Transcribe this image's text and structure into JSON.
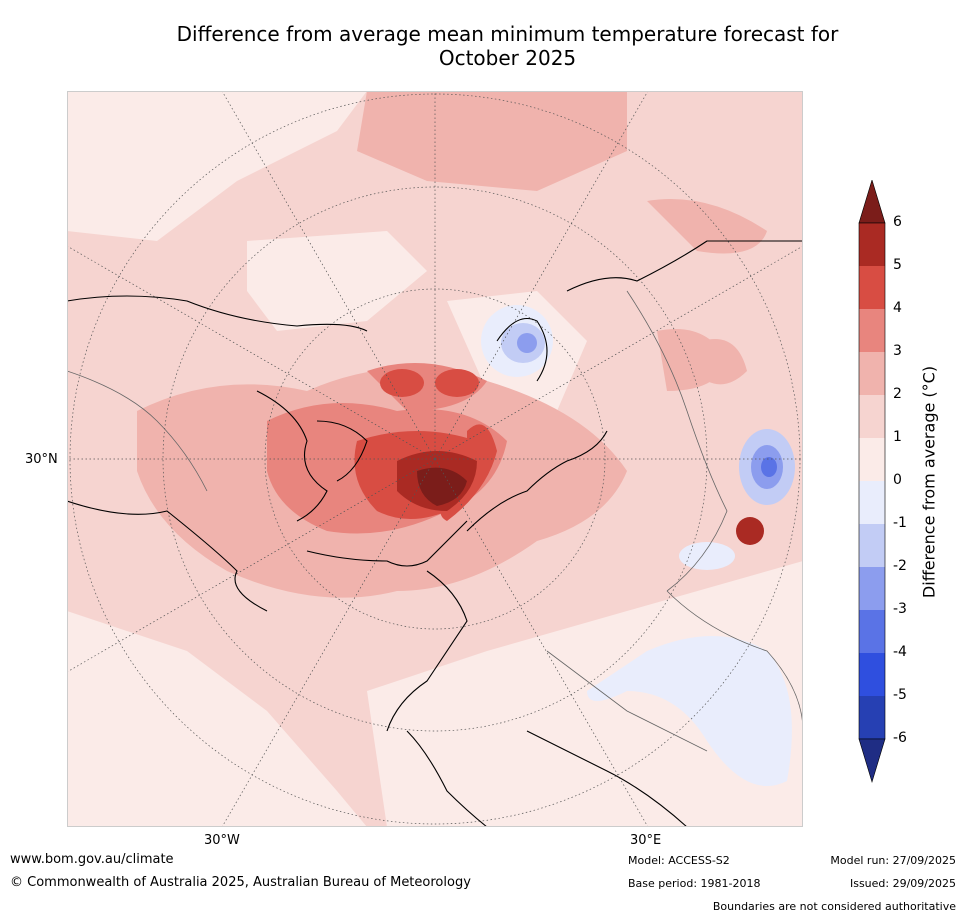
{
  "title_line1": "Difference from average mean minimum temperature forecast for",
  "title_line2": "October 2025",
  "axis_labels": {
    "lat": "30°N",
    "lon_w": "30°W",
    "lon_e": "30°E"
  },
  "colorbar": {
    "title": "Difference from average (°C)",
    "ticks": [
      "6",
      "5",
      "4",
      "3",
      "2",
      "1",
      "0",
      "-1",
      "-2",
      "-3",
      "-4",
      "-5",
      "-6"
    ],
    "colors": [
      "#7b1d1a",
      "#aa2a23",
      "#d84d43",
      "#e8857e",
      "#f0b3ad",
      "#f6d4d0",
      "#fbebe8",
      "#e9edfc",
      "#c2ccf5",
      "#8c9dee",
      "#5a73e6",
      "#2f4fdf",
      "#2640b3",
      "#1f2d84"
    ]
  },
  "footer": {
    "website": "www.bom.gov.au/climate",
    "copyright": "© Commonwealth of Australia 2025, Australian Bureau of Meteorology",
    "model": "Model: ACCESS-S2",
    "base_period": "Base period: 1981-2018",
    "model_run": "Model run: 27/09/2025",
    "issued": "Issued: 29/09/2025",
    "disclaimer": "Boundaries are not considered authoritative"
  }
}
